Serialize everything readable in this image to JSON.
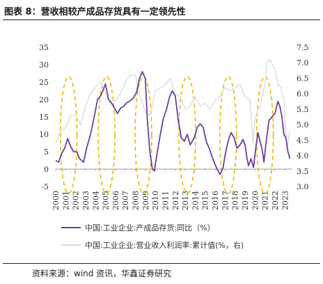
{
  "title": "图表 8：营收相较产成品存货具有一定领先性",
  "source": "资料来源：wind 资讯，华鑫证券研究",
  "chart_data": {
    "type": "line",
    "x_ticks": [
      "2000",
      "2001",
      "2002",
      "2003",
      "2004",
      "2005",
      "2006",
      "2007",
      "2008",
      "2009",
      "2010",
      "2011",
      "2012",
      "2013",
      "2014",
      "2015",
      "2016",
      "2017",
      "2018",
      "2019",
      "2020",
      "2021",
      "2022",
      "2023"
    ],
    "y_left": {
      "ticks": [
        -5,
        0,
        5,
        10,
        15,
        20,
        25,
        30,
        35
      ],
      "range": [
        -5,
        35
      ]
    },
    "y_right": {
      "ticks": [
        3.0,
        3.5,
        4.0,
        4.5,
        5.0,
        5.5,
        6.0,
        6.5,
        7.0,
        7.5
      ],
      "range": [
        3.0,
        7.5
      ]
    },
    "series": [
      {
        "name": "中国:工业企业:产成品存货:同比（%）",
        "axis": "left",
        "color": "#6b3fa0",
        "points": [
          [
            2000.0,
            2.5
          ],
          [
            2000.3,
            2.0
          ],
          [
            2000.6,
            4.5
          ],
          [
            2000.9,
            6.0
          ],
          [
            2001.2,
            8.8
          ],
          [
            2001.5,
            6.5
          ],
          [
            2001.8,
            5.0
          ],
          [
            2002.1,
            5.0
          ],
          [
            2002.4,
            3.0
          ],
          [
            2002.8,
            2.0
          ],
          [
            2003.1,
            6.0
          ],
          [
            2003.5,
            10.0
          ],
          [
            2003.9,
            15.5
          ],
          [
            2004.2,
            20.0
          ],
          [
            2004.5,
            21.0
          ],
          [
            2004.8,
            23.0
          ],
          [
            2005.0,
            24.5
          ],
          [
            2005.3,
            20.0
          ],
          [
            2005.6,
            19.0
          ],
          [
            2005.9,
            17.5
          ],
          [
            2006.2,
            16.0
          ],
          [
            2006.5,
            17.5
          ],
          [
            2006.8,
            18.0
          ],
          [
            2007.1,
            19.0
          ],
          [
            2007.4,
            19.5
          ],
          [
            2007.8,
            20.5
          ],
          [
            2008.1,
            22.0
          ],
          [
            2008.4,
            26.0
          ],
          [
            2008.7,
            28.0
          ],
          [
            2009.0,
            26.0
          ],
          [
            2009.2,
            14.0
          ],
          [
            2009.45,
            5.0
          ],
          [
            2009.7,
            0.0
          ],
          [
            2009.9,
            -0.5
          ],
          [
            2010.2,
            5.0
          ],
          [
            2010.5,
            10.0
          ],
          [
            2010.8,
            14.5
          ],
          [
            2011.1,
            17.0
          ],
          [
            2011.4,
            20.5
          ],
          [
            2011.7,
            22.5
          ],
          [
            2012.0,
            21.0
          ],
          [
            2012.3,
            14.0
          ],
          [
            2012.6,
            9.0
          ],
          [
            2012.9,
            8.0
          ],
          [
            2013.2,
            10.0
          ],
          [
            2013.5,
            7.0
          ],
          [
            2013.9,
            9.0
          ],
          [
            2014.2,
            12.0
          ],
          [
            2014.5,
            13.0
          ],
          [
            2014.8,
            12.0
          ],
          [
            2015.1,
            8.0
          ],
          [
            2015.4,
            6.0
          ],
          [
            2015.7,
            3.5
          ],
          [
            2015.9,
            2.0
          ],
          [
            2016.2,
            0.0
          ],
          [
            2016.5,
            -1.5
          ],
          [
            2016.8,
            0.5
          ],
          [
            2017.0,
            4.0
          ],
          [
            2017.3,
            8.0
          ],
          [
            2017.6,
            10.5
          ],
          [
            2017.9,
            9.0
          ],
          [
            2018.2,
            6.0
          ],
          [
            2018.5,
            7.0
          ],
          [
            2018.8,
            8.5
          ],
          [
            2019.0,
            7.0
          ],
          [
            2019.2,
            3.0
          ],
          [
            2019.35,
            1.0
          ],
          [
            2019.6,
            3.0
          ],
          [
            2019.85,
            0.5
          ],
          [
            2020.1,
            6.5
          ],
          [
            2020.3,
            10.5
          ],
          [
            2020.5,
            8.0
          ],
          [
            2020.7,
            6.0
          ],
          [
            2020.9,
            2.0
          ],
          [
            2021.1,
            7.5
          ],
          [
            2021.4,
            14.0
          ],
          [
            2021.7,
            15.0
          ],
          [
            2022.0,
            16.0
          ],
          [
            2022.3,
            19.5
          ],
          [
            2022.5,
            18.0
          ],
          [
            2022.7,
            15.0
          ],
          [
            2022.9,
            10.0
          ],
          [
            2023.1,
            9.0
          ],
          [
            2023.3,
            5.0
          ],
          [
            2023.5,
            3.0
          ]
        ]
      },
      {
        "name": "中国:工业企业:营业收入利润率:累计值(%，右)",
        "axis": "right",
        "color": "#d9d9d9",
        "points": [
          [
            2000.0,
            4.4
          ],
          [
            2000.5,
            4.8
          ],
          [
            2001.0,
            4.9
          ],
          [
            2001.5,
            5.3
          ],
          [
            2002.0,
            5.3
          ],
          [
            2002.5,
            5.0
          ],
          [
            2003.0,
            5.6
          ],
          [
            2003.5,
            6.0
          ],
          [
            2004.0,
            6.2
          ],
          [
            2004.5,
            6.4
          ],
          [
            2005.0,
            6.0
          ],
          [
            2005.5,
            5.7
          ],
          [
            2006.0,
            5.8
          ],
          [
            2006.5,
            6.0
          ],
          [
            2007.0,
            6.4
          ],
          [
            2007.5,
            6.6
          ],
          [
            2008.0,
            6.6
          ],
          [
            2008.5,
            5.9
          ],
          [
            2009.0,
            5.4
          ],
          [
            2009.5,
            5.3
          ],
          [
            2010.0,
            6.1
          ],
          [
            2010.5,
            6.2
          ],
          [
            2011.0,
            6.3
          ],
          [
            2011.5,
            6.5
          ],
          [
            2012.0,
            6.0
          ],
          [
            2012.5,
            5.9
          ],
          [
            2013.0,
            5.5
          ],
          [
            2013.5,
            5.6
          ],
          [
            2014.0,
            5.9
          ],
          [
            2014.5,
            5.6
          ],
          [
            2015.0,
            5.7
          ],
          [
            2015.5,
            5.5
          ],
          [
            2016.0,
            5.8
          ],
          [
            2016.5,
            5.9
          ],
          [
            2017.0,
            6.2
          ],
          [
            2017.5,
            6.1
          ],
          [
            2018.0,
            6.2
          ],
          [
            2018.5,
            6.3
          ],
          [
            2019.0,
            5.9
          ],
          [
            2019.5,
            5.8
          ],
          [
            2019.8,
            4.4
          ],
          [
            2020.0,
            5.2
          ],
          [
            2020.5,
            5.6
          ],
          [
            2021.0,
            6.3
          ],
          [
            2021.2,
            7.0
          ],
          [
            2021.5,
            7.1
          ],
          [
            2021.8,
            6.9
          ],
          [
            2022.0,
            6.8
          ],
          [
            2022.3,
            6.3
          ],
          [
            2022.6,
            6.2
          ],
          [
            2022.9,
            5.8
          ],
          [
            2023.2,
            4.2
          ],
          [
            2023.5,
            4.8
          ]
        ]
      }
    ],
    "highlight_years": [
      2001.3,
      2005.1,
      2008.8,
      2013.2,
      2017.3,
      2021.0
    ],
    "highlight_style": "dashed-ellipse",
    "highlight_color": "#f0b800"
  }
}
